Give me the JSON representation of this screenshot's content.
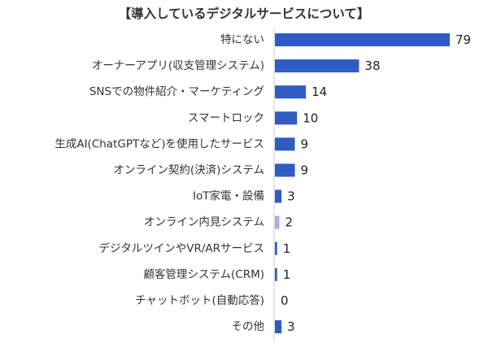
{
  "chart_data": {
    "type": "bar",
    "orientation": "horizontal",
    "title": "【導入しているデジタルサービスについて】",
    "categories": [
      "特にない",
      "オーナーアプリ(収支管理システム)",
      "SNSでの物件紹介・マーケティング",
      "スマートロック",
      "生成AI(ChatGPTなど)を使用したサービス",
      "オンライン契約(決済)システム",
      "IoT家電・設備",
      "オンライン内見システム",
      "デジタルツインやVR/ARサービス",
      "顧客管理システム(CRM)",
      "チャットボット(自動応答)",
      "その他"
    ],
    "values": [
      79,
      38,
      14,
      10,
      9,
      9,
      3,
      2,
      1,
      1,
      0,
      3
    ],
    "xlim": [
      0,
      79
    ],
    "grid": false,
    "colors": {
      "bar": "#2f5cc4",
      "bar_highlight": "#9fb3df",
      "axis": "#cccccc"
    },
    "highlight_index": 7
  }
}
